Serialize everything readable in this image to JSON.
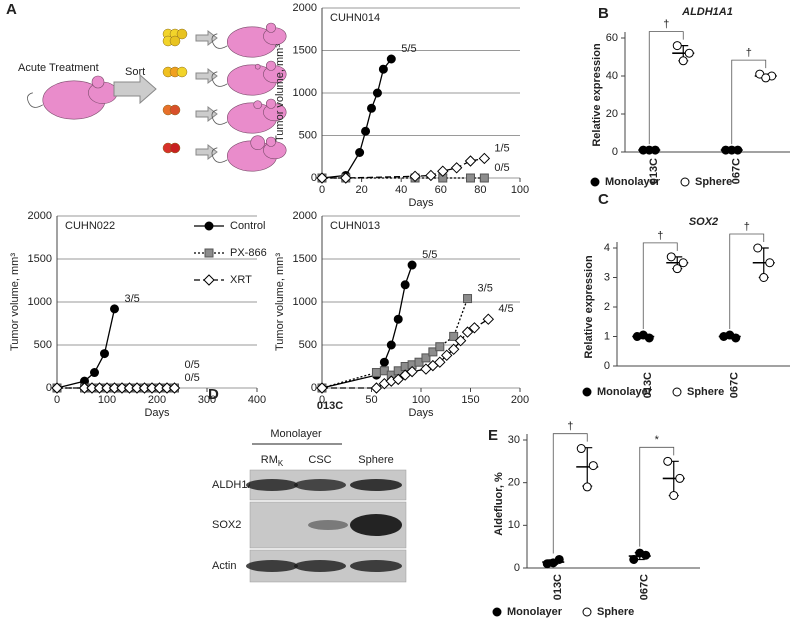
{
  "panel_labels": [
    "A",
    "B",
    "C",
    "D",
    "E"
  ],
  "schematic": {
    "treatment": "Acute Treatment",
    "sort": "Sort"
  },
  "blot": {
    "sample": "013C",
    "group": "Monolayer",
    "lanes": [
      {
        "main": "RM",
        "sub": "K"
      },
      {
        "main": "CSC"
      },
      {
        "main": "Sphere"
      }
    ],
    "rows": [
      "ALDH1A1",
      "SOX2",
      "Actin"
    ]
  },
  "chart_data": [
    {
      "type": "line",
      "title": "CUHN014",
      "xlabel": "Days",
      "ylabel": "Tumor volume, mm³",
      "xlim": [
        0,
        100
      ],
      "xticks": [
        0,
        20,
        40,
        60,
        80,
        100
      ],
      "ylim": [
        0,
        2000
      ],
      "yticks": [
        0,
        500,
        1000,
        1500,
        2000
      ],
      "grid": true,
      "legend": false,
      "series": [
        {
          "color": "#000000",
          "marker": "circle",
          "dash": "solid",
          "end_label": "5/5",
          "x": [
            0,
            12,
            19,
            22,
            25,
            28,
            31,
            35
          ],
          "values": [
            0,
            30,
            300,
            550,
            820,
            1000,
            1280,
            1400
          ]
        },
        {
          "color": "#8c8c8c",
          "marker": "square",
          "dash": "dotted",
          "end_label": "0/5",
          "x": [
            0,
            12,
            47,
            61,
            75,
            82
          ],
          "values": [
            0,
            0,
            0,
            0,
            0,
            0
          ]
        },
        {
          "color": "#ffffff",
          "marker": "diamond",
          "dash": "dashed",
          "end_label": "1/5",
          "x": [
            0,
            12,
            47,
            55,
            61,
            68,
            75,
            82
          ],
          "values": [
            0,
            0,
            20,
            30,
            80,
            120,
            200,
            230
          ]
        }
      ]
    },
    {
      "type": "line",
      "title": "CUHN022",
      "xlabel": "Days",
      "ylabel": "Tumor volume, mm³",
      "xlim": [
        0,
        400
      ],
      "xticks": [
        0,
        100,
        200,
        300,
        400
      ],
      "ylim": [
        0,
        2000
      ],
      "yticks": [
        0,
        500,
        1000,
        1500,
        2000
      ],
      "grid": true,
      "legend": true,
      "series": [
        {
          "name": "Control",
          "color": "#000000",
          "marker": "circle",
          "dash": "solid",
          "end_label": "3/5",
          "x": [
            0,
            55,
            75,
            95,
            115
          ],
          "values": [
            0,
            80,
            180,
            400,
            920
          ]
        },
        {
          "name": "PX-866",
          "color": "#8c8c8c",
          "marker": "square",
          "dash": "dotted",
          "end_label": "0/5",
          "x": [
            0,
            55,
            70,
            85,
            100,
            115,
            130,
            145,
            160,
            175,
            190,
            205,
            220,
            235
          ],
          "values": [
            0,
            0,
            0,
            0,
            0,
            0,
            0,
            0,
            0,
            0,
            0,
            0,
            0,
            0
          ]
        },
        {
          "name": "XRT",
          "color": "#ffffff",
          "marker": "diamond",
          "dash": "dashed",
          "end_label": "0/5",
          "x": [
            0,
            55,
            70,
            85,
            100,
            115,
            130,
            145,
            160,
            175,
            190,
            205,
            220,
            235
          ],
          "values": [
            0,
            0,
            0,
            0,
            0,
            0,
            0,
            0,
            0,
            0,
            0,
            0,
            0,
            0
          ]
        }
      ]
    },
    {
      "type": "line",
      "title": "CUHN013",
      "xlabel": "Days",
      "ylabel": "Tumor volume, mm³",
      "xlim": [
        0,
        200
      ],
      "xticks": [
        0,
        50,
        100,
        150,
        200
      ],
      "ylim": [
        0,
        2000
      ],
      "yticks": [
        0,
        500,
        1000,
        1500,
        2000
      ],
      "grid": true,
      "legend": false,
      "series": [
        {
          "color": "#000000",
          "marker": "circle",
          "dash": "solid",
          "end_label": "5/5",
          "x": [
            0,
            55,
            63,
            70,
            77,
            84,
            91
          ],
          "values": [
            0,
            150,
            300,
            500,
            800,
            1200,
            1430
          ]
        },
        {
          "color": "#8c8c8c",
          "marker": "square",
          "dash": "dotted",
          "end_label": "3/5",
          "x": [
            0,
            55,
            63,
            70,
            77,
            84,
            91,
            98,
            105,
            112,
            119,
            133,
            147
          ],
          "values": [
            0,
            180,
            200,
            150,
            200,
            250,
            270,
            300,
            350,
            420,
            480,
            600,
            1040
          ]
        },
        {
          "color": "#ffffff",
          "marker": "diamond",
          "dash": "dashed",
          "end_label": "4/5",
          "x": [
            0,
            55,
            63,
            70,
            77,
            84,
            91,
            105,
            112,
            119,
            126,
            133,
            140,
            147,
            154,
            168
          ],
          "values": [
            0,
            0,
            50,
            80,
            100,
            150,
            190,
            220,
            260,
            300,
            380,
            450,
            550,
            650,
            700,
            800
          ]
        }
      ]
    },
    {
      "type": "dot",
      "title": "ALDH1A1",
      "ylabel": "Relative expression",
      "categories": [
        "013C",
        "067C"
      ],
      "ylim": [
        0,
        60
      ],
      "yticks": [
        0,
        20,
        40,
        60
      ],
      "significance": [
        "†",
        "†"
      ],
      "series": [
        {
          "name": "Monolayer",
          "color": "#000000",
          "values": [
            [
              1,
              1,
              1
            ],
            [
              1,
              1,
              1
            ]
          ],
          "mean": [
            1,
            1
          ],
          "sd": [
            0,
            0
          ]
        },
        {
          "name": "Sphere",
          "color": "#ffffff",
          "values": [
            [
              56,
              52,
              48
            ],
            [
              41,
              40,
              39
            ]
          ],
          "mean": [
            52,
            40
          ],
          "sd": [
            4,
            1
          ]
        }
      ]
    },
    {
      "type": "dot",
      "title": "SOX2",
      "ylabel": "Relative expression",
      "categories": [
        "013C",
        "067C"
      ],
      "ylim": [
        0,
        4
      ],
      "yticks": [
        0,
        1,
        2,
        3,
        4
      ],
      "significance": [
        "†",
        "†"
      ],
      "series": [
        {
          "name": "Monolayer",
          "color": "#000000",
          "values": [
            [
              1,
              0.95,
              1.05
            ],
            [
              1,
              0.95,
              1.05
            ]
          ],
          "mean": [
            1,
            1
          ],
          "sd": [
            0.05,
            0.05
          ]
        },
        {
          "name": "Sphere",
          "color": "#ffffff",
          "values": [
            [
              3.7,
              3.5,
              3.3
            ],
            [
              4,
              3.5,
              3
            ]
          ],
          "mean": [
            3.5,
            3.5
          ],
          "sd": [
            0.2,
            0.5
          ]
        }
      ]
    },
    {
      "type": "dot",
      "ylabel": "Aldefluor, %",
      "categories": [
        "013C",
        "067C"
      ],
      "ylim": [
        0,
        30
      ],
      "yticks": [
        0,
        10,
        20,
        30
      ],
      "significance": [
        "†",
        "*"
      ],
      "series": [
        {
          "name": "Monolayer",
          "color": "#000000",
          "values": [
            [
              1,
              2,
              1.2
            ],
            [
              2,
              3,
              3.5
            ]
          ],
          "mean": [
            1.4,
            2.8
          ],
          "sd": [
            0.5,
            0.8
          ]
        },
        {
          "name": "Sphere",
          "color": "#ffffff",
          "values": [
            [
              28,
              24,
              19
            ],
            [
              25,
              21,
              17
            ]
          ],
          "mean": [
            23.7,
            21
          ],
          "sd": [
            4.5,
            4
          ]
        }
      ]
    }
  ]
}
